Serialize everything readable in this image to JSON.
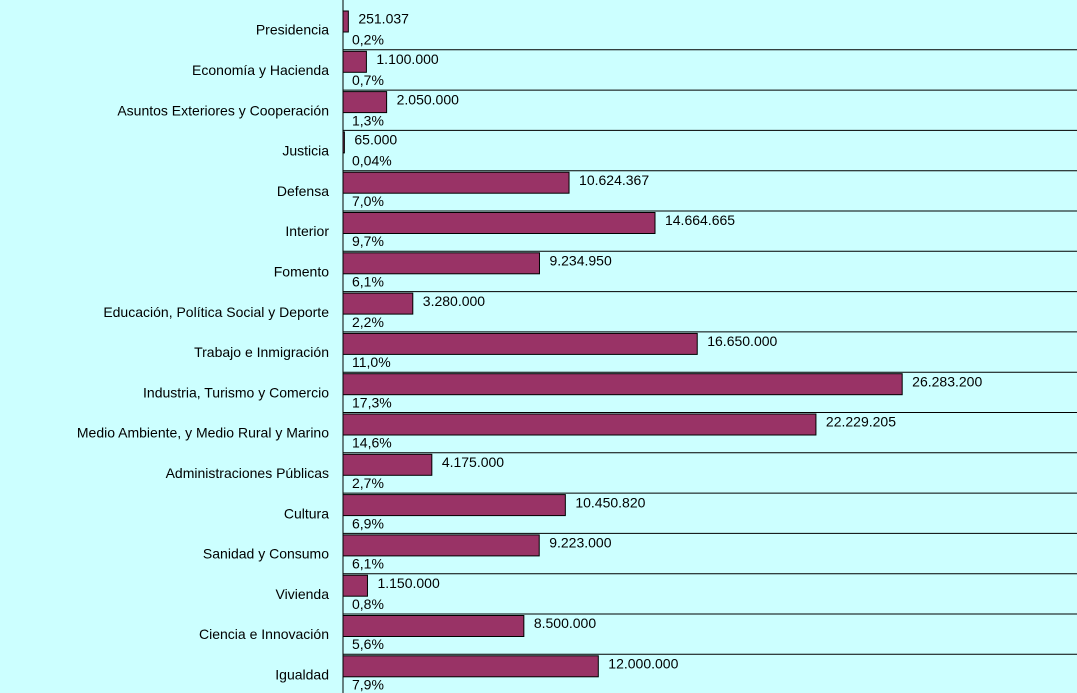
{
  "chart_data": {
    "type": "bar",
    "orientation": "horizontal",
    "categories": [
      "Presidencia",
      "Economía y Hacienda",
      "Asuntos Exteriores y Cooperación",
      "Justicia",
      "Defensa",
      "Interior",
      "Fomento",
      "Educación, Política Social y Deporte",
      "Trabajo e Inmigración",
      "Industria, Turismo y Comercio",
      "Medio Ambiente, y Medio Rural y Marino",
      "Administraciones Públicas",
      "Cultura",
      "Sanidad y Consumo",
      "Vivienda",
      "Ciencia e Innovación",
      "Igualdad"
    ],
    "values": [
      251037,
      1100000,
      2050000,
      65000,
      10624367,
      14664665,
      9234950,
      3280000,
      16650000,
      26283200,
      22229205,
      4175000,
      10450820,
      9223000,
      1150000,
      8500000,
      12000000
    ],
    "value_labels": [
      "251.037",
      "1.100.000",
      "2.050.000",
      "65.000",
      "10.624.367",
      "14.664.665",
      "9.234.950",
      "3.280.000",
      "16.650.000",
      "26.283.200",
      "22.229.205",
      "4.175.000",
      "10.450.820",
      "9.223.000",
      "1.150.000",
      "8.500.000",
      "12.000.000"
    ],
    "shares": [
      0.2,
      0.7,
      1.3,
      0.04,
      7.0,
      9.7,
      6.1,
      2.2,
      11.0,
      17.3,
      14.6,
      2.7,
      6.9,
      6.1,
      0.8,
      5.6,
      7.9
    ],
    "share_labels": [
      "0,2%",
      "0,7%",
      "1,3%",
      "0,04%",
      "7,0%",
      "9,7%",
      "6,1%",
      "2,2%",
      "11,0%",
      "17,3%",
      "14,6%",
      "2,7%",
      "6,9%",
      "6,1%",
      "0,8%",
      "5,6%",
      "7,9%"
    ],
    "color": "#993366",
    "xlim": [
      0,
      34500000
    ]
  }
}
